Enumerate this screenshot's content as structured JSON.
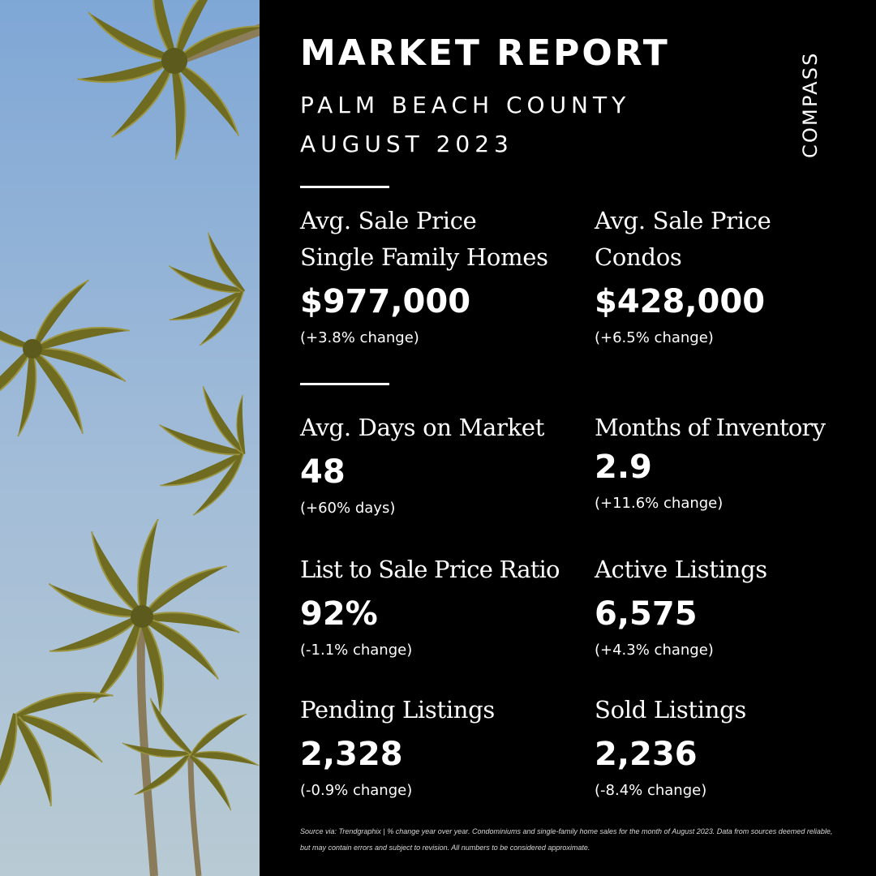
{
  "header": {
    "title": "MARKET REPORT",
    "county": "PALM BEACH COUNTY",
    "period": "AUGUST 2023",
    "brand": "COMPASS"
  },
  "stats": [
    {
      "label_line1": "Avg. Sale Price",
      "label_line2": "Single Family Homes",
      "value": "$977,000",
      "change": "(+3.8% change)"
    },
    {
      "label_line1": "Avg. Sale Price",
      "label_line2": "Condos",
      "value": "$428,000",
      "change": "(+6.5% change)"
    },
    {
      "label": "Avg. Days on Market",
      "value": "48",
      "change": "(+60% days)"
    },
    {
      "label": "Months of Inventory",
      "value": "2.9",
      "change": "(+11.6% change)"
    },
    {
      "label": "List to Sale Price Ratio",
      "value": "92%",
      "change": "(-1.1% change)"
    },
    {
      "label": "Active Listings",
      "value": "6,575",
      "change": "(+4.3% change)"
    },
    {
      "label": "Pending Listings",
      "value": "2,328",
      "change": "(-0.9% change)"
    },
    {
      "label": "Sold Listings",
      "value": "2,236",
      "change": "(-8.4% change)"
    }
  ],
  "footnote": "Source via: Trendgraphix | % change year over year. Condominiums and single-family home sales for the month of August 2023. Data from sources deemed reliable, but may contain errors and subject to revision. All numbers to be considered approximate.",
  "colors": {
    "background": "#000000",
    "text": "#ffffff",
    "sky_top": "#7fa7d6",
    "sky_bottom": "#b5c9d6",
    "palm_frond": "#7d7a2a"
  }
}
